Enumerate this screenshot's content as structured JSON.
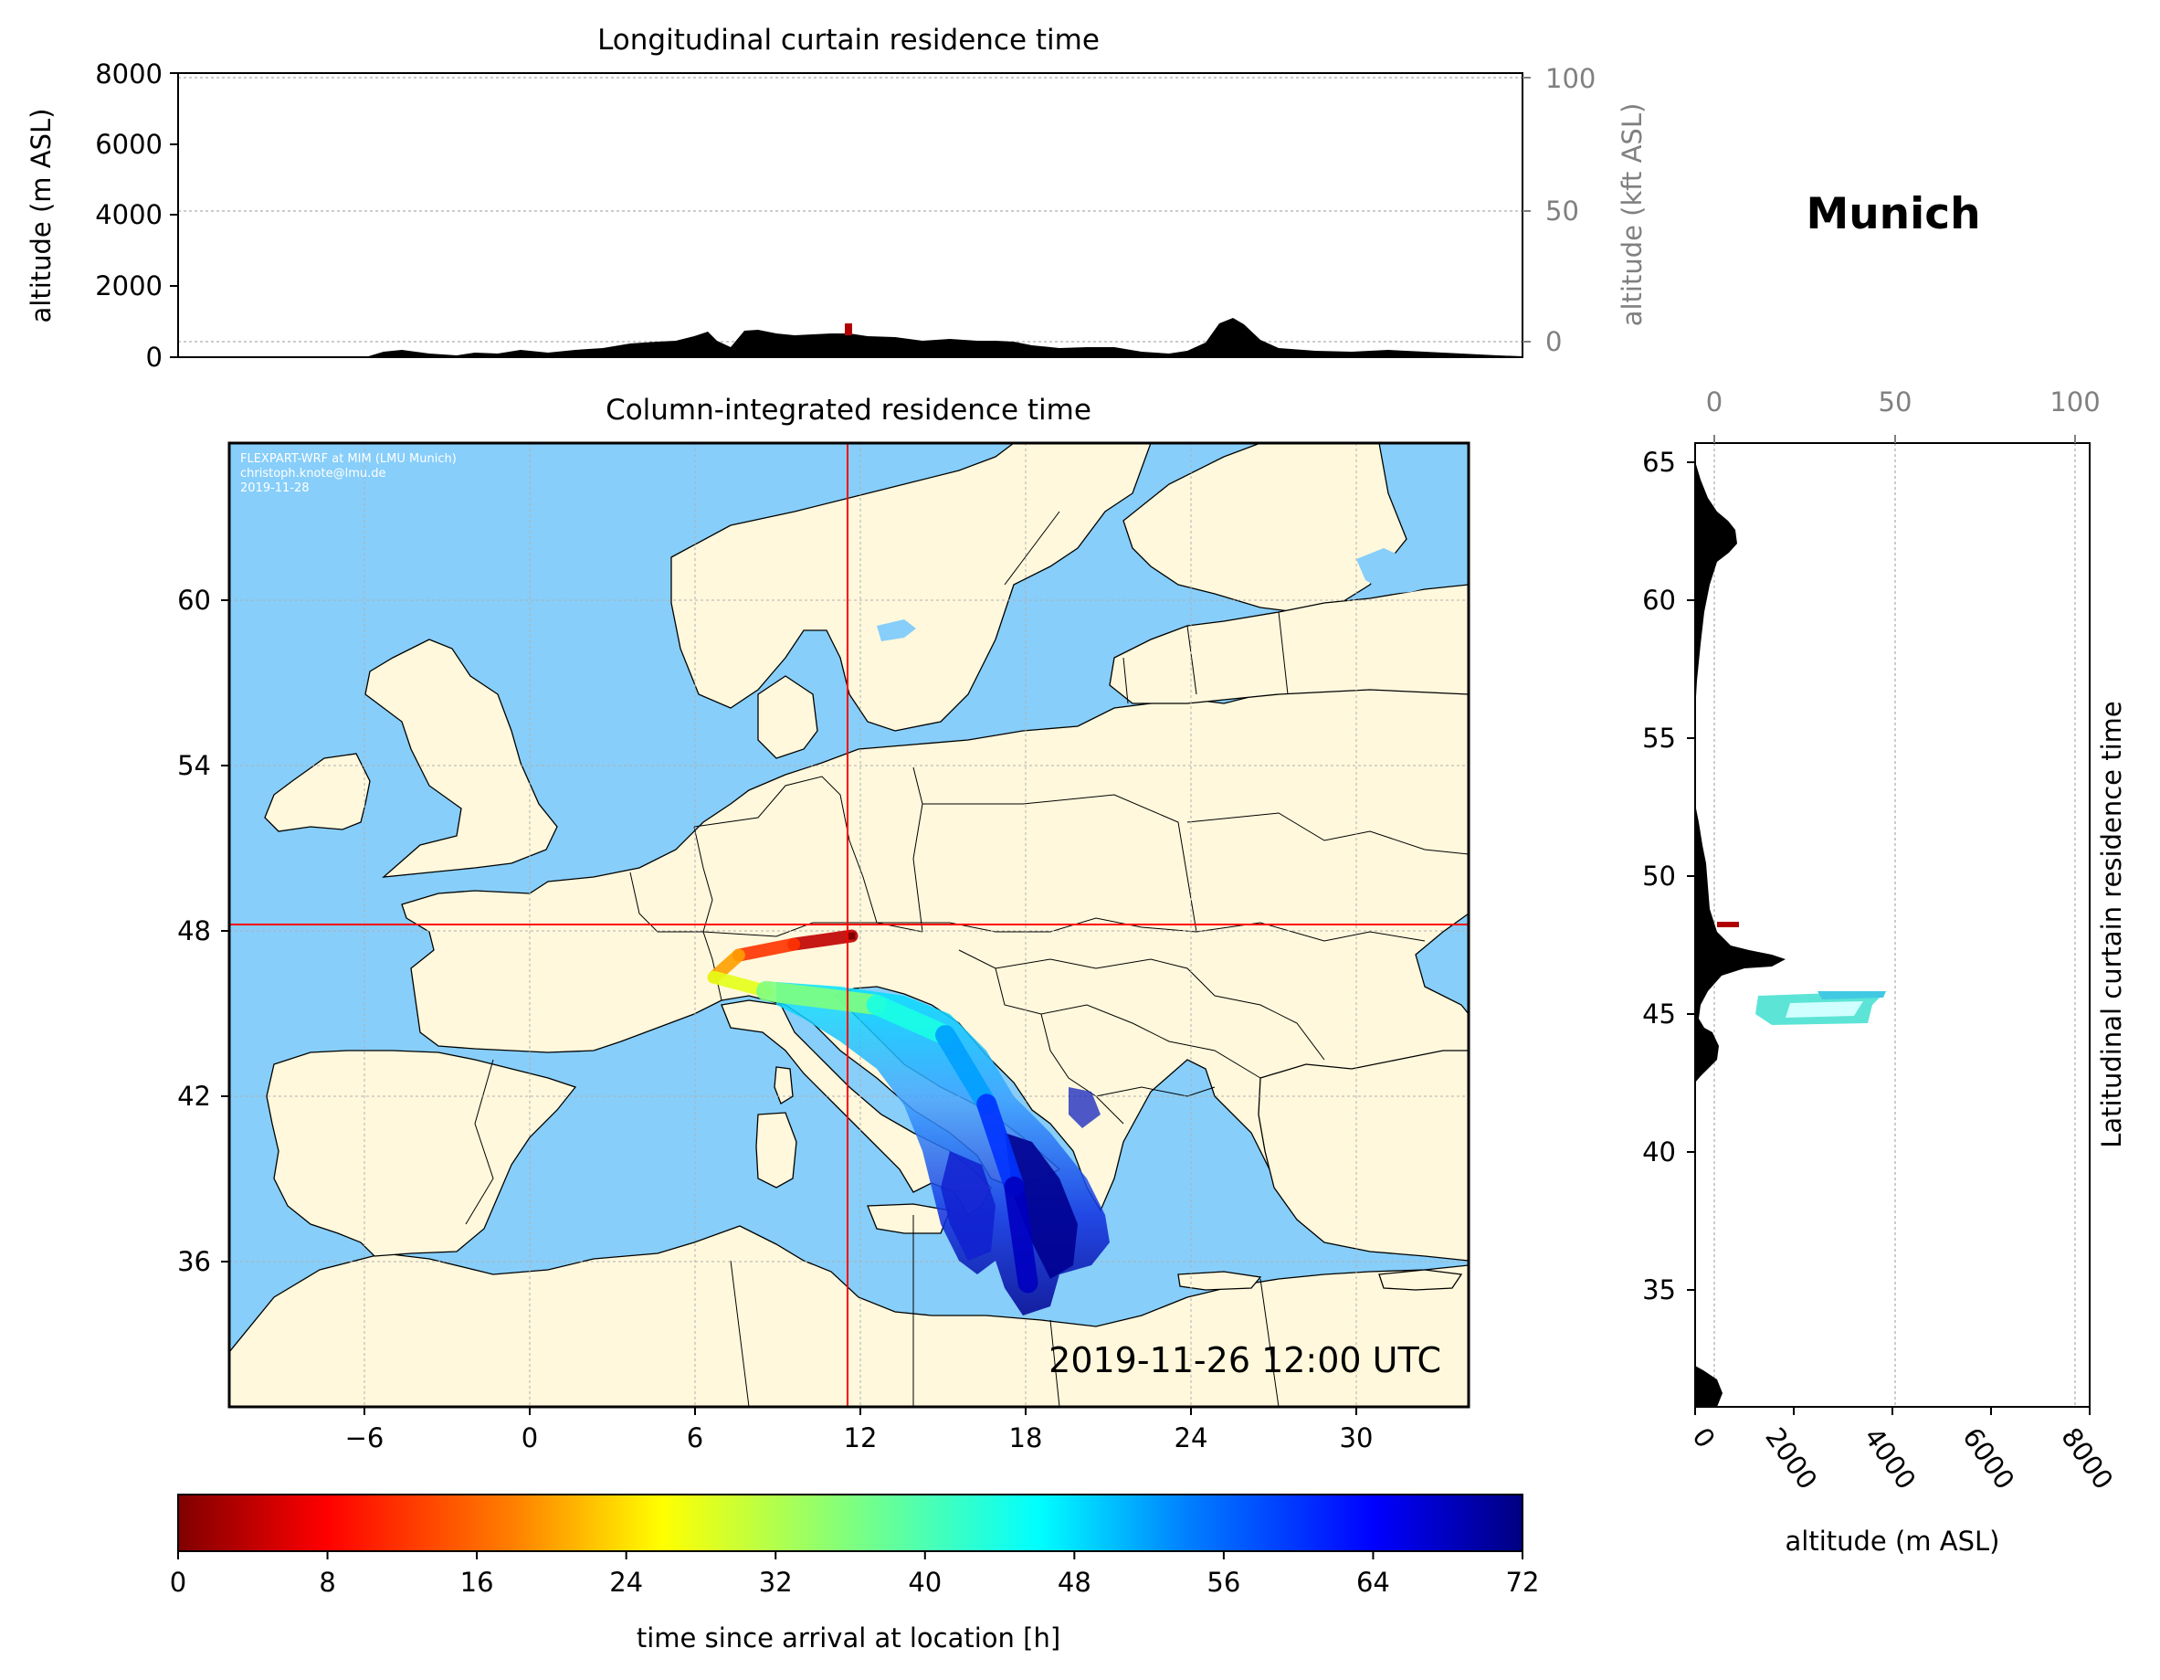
{
  "location_title": "Munich",
  "timestamp": "2019-11-26 12:00 UTC",
  "credits": [
    "FLEXPART-WRF at MIM (LMU Munich)",
    "christoph.knote@lmu.de",
    "2019-11-28"
  ],
  "colors": {
    "ocean": "#87CEFA",
    "land": "#FFF8DC",
    "crosshair": "#FF0000",
    "terrain": "#000000"
  },
  "chart_data": [
    {
      "type": "area",
      "title": "Longitudinal curtain residence time",
      "ylabel": "altitude (m ASL)",
      "ylabel_right": "altitude (kft ASL)",
      "yticks": [
        "0",
        "2000",
        "4000",
        "6000",
        "8000"
      ],
      "yticks_right": [
        "0",
        "50",
        "100"
      ],
      "ylim": [
        0,
        8000
      ],
      "grid": true
    },
    {
      "type": "heatmap",
      "title": "Column-integrated residence time",
      "xticks": [
        "−6",
        "0",
        "6",
        "12",
        "18",
        "24",
        "30"
      ],
      "yticks": [
        "36",
        "42",
        "48",
        "54",
        "60"
      ],
      "xlim": [
        -11,
        34
      ],
      "ylim": [
        31,
        66
      ],
      "arrival_location": {
        "lon": 11.6,
        "lat": 48.1
      },
      "trajectory": [
        {
          "lon": 11.6,
          "lat": 48.1,
          "hours": 0
        },
        {
          "lon": 9.5,
          "lat": 47.8,
          "hours": 8
        },
        {
          "lon": 7.5,
          "lat": 47.4,
          "hours": 16
        },
        {
          "lon": 6.6,
          "lat": 46.6,
          "hours": 24
        },
        {
          "lon": 8.5,
          "lat": 46.1,
          "hours": 32
        },
        {
          "lon": 12.5,
          "lat": 45.6,
          "hours": 40
        },
        {
          "lon": 15.0,
          "lat": 44.5,
          "hours": 48
        },
        {
          "lon": 16.5,
          "lat": 42.0,
          "hours": 56
        },
        {
          "lon": 17.5,
          "lat": 39.0,
          "hours": 64
        },
        {
          "lon": 18.0,
          "lat": 35.5,
          "hours": 72
        }
      ]
    },
    {
      "type": "area",
      "title": "",
      "ylabel": "Latitudinal curtain residence time",
      "xlabel": "altitude (m ASL)",
      "xticks": [
        "0",
        "2000",
        "4000",
        "6000",
        "8000"
      ],
      "xticks_top": [
        "0",
        "50",
        "100"
      ],
      "yticks": [
        "35",
        "40",
        "45",
        "50",
        "55",
        "60",
        "65"
      ],
      "grid": true
    },
    {
      "type": "colorbar",
      "label": "time since arrival at location [h]",
      "ticks": [
        "0",
        "8",
        "16",
        "24",
        "32",
        "40",
        "48",
        "56",
        "64",
        "72"
      ],
      "range": [
        0,
        72
      ],
      "colormap": "jet_r"
    }
  ]
}
